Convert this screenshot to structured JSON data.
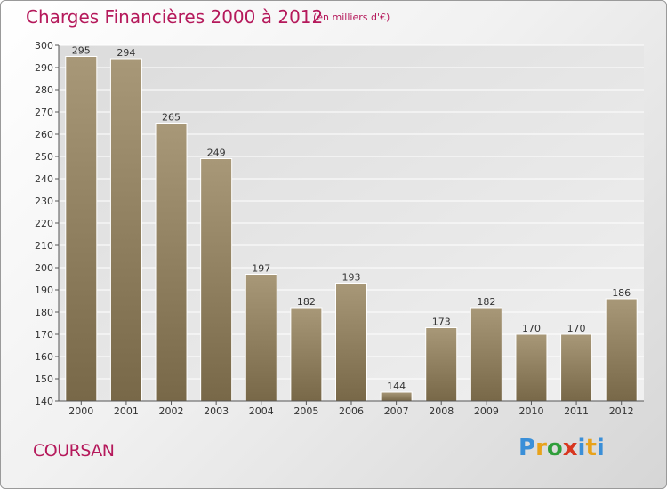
{
  "header": {
    "title": "Charges Financières 2000 à 2012",
    "subtitle": "(en milliers d'€)"
  },
  "footer": {
    "commune": "COURSAN",
    "logo_text": "Proxiti"
  },
  "colors": {
    "bar_light": "#a89878",
    "bar_dark": "#7a6a4c",
    "title": "#b5195b",
    "logo": [
      "#3a8fd8",
      "#e8a21a",
      "#2f9e3a",
      "#d8361f",
      "#3a8fd8",
      "#e8a21a",
      "#3a8fd8"
    ]
  },
  "chart_data": {
    "type": "bar",
    "title": "Charges Financières 2000 à 2012",
    "subtitle": "(en milliers d'€)",
    "categories": [
      "2000",
      "2001",
      "2002",
      "2003",
      "2004",
      "2005",
      "2006",
      "2007",
      "2008",
      "2009",
      "2010",
      "2011",
      "2012"
    ],
    "values": [
      295,
      294,
      265,
      249,
      197,
      182,
      193,
      144,
      173,
      182,
      170,
      170,
      186
    ],
    "ylim": [
      140,
      300
    ],
    "yticks": [
      140,
      150,
      160,
      170,
      180,
      190,
      200,
      210,
      220,
      230,
      240,
      250,
      260,
      270,
      280,
      290,
      300
    ],
    "grid": true,
    "legend": "none"
  }
}
